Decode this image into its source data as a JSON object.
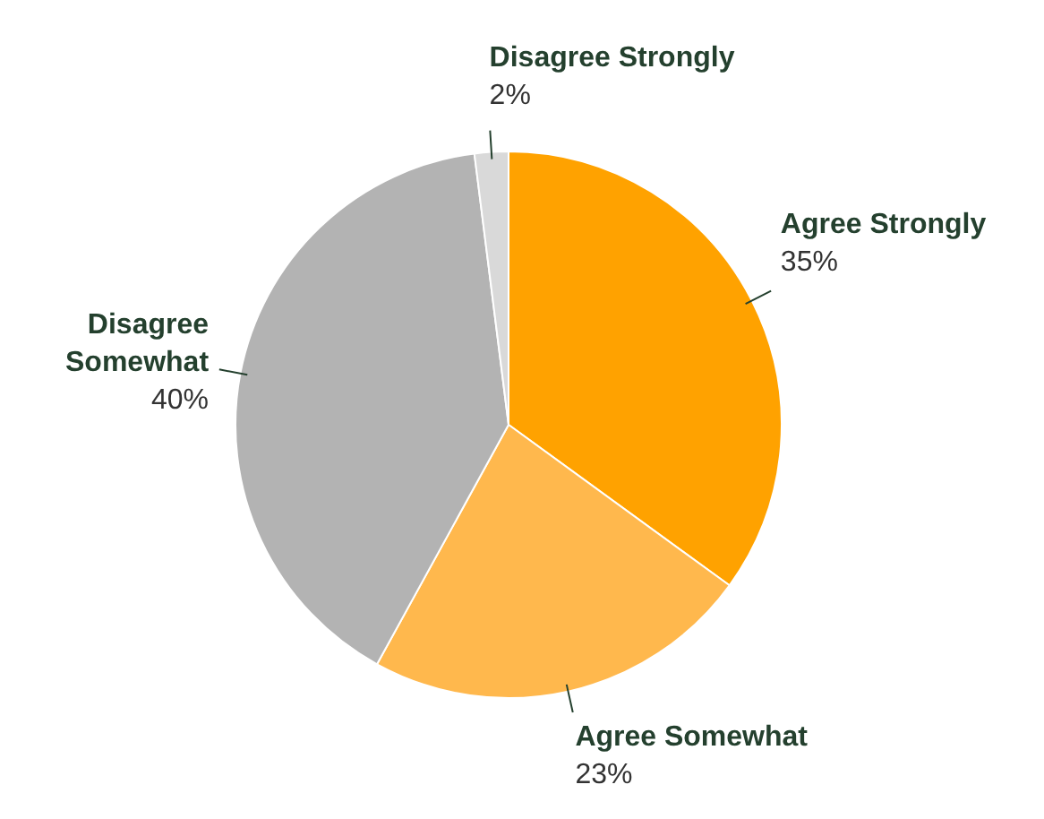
{
  "chart_data": {
    "type": "pie",
    "categories": [
      "Agree Strongly",
      "Agree Somewhat",
      "Disagree Somewhat",
      "Disagree Strongly"
    ],
    "values": [
      35,
      23,
      40,
      2
    ],
    "colors": [
      "#ffa200",
      "#ffb84d",
      "#b3b3b3",
      "#d9d9d9"
    ],
    "value_labels": [
      "35%",
      "23%",
      "40%",
      "2%"
    ],
    "legend": false
  }
}
